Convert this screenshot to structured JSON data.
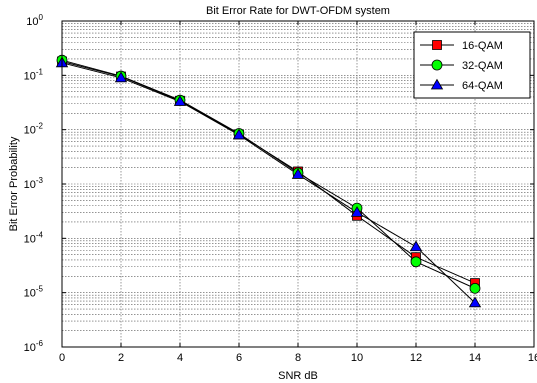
{
  "chart_data": {
    "type": "line",
    "title": "Bit Error Rate for DWT-OFDM system",
    "xlabel": "SNR dB",
    "ylabel": "Bit Error Probability",
    "xscale": "linear",
    "yscale": "log",
    "xlim": [
      0,
      16
    ],
    "ylim": [
      1e-06,
      1
    ],
    "x_ticks": [
      0,
      2,
      4,
      6,
      8,
      10,
      12,
      14,
      16
    ],
    "x_tick_labels": [
      "0",
      "2",
      "4",
      "6",
      "8",
      "10",
      "12",
      "14",
      "16"
    ],
    "y_ticks": [
      {
        "value": 1,
        "base": "10",
        "exp": "0"
      },
      {
        "value": 0.1,
        "base": "10",
        "exp": "-1"
      },
      {
        "value": 0.01,
        "base": "10",
        "exp": "-2"
      },
      {
        "value": 0.001,
        "base": "10",
        "exp": "-3"
      },
      {
        "value": 0.0001,
        "base": "10",
        "exp": "-4"
      },
      {
        "value": 1e-05,
        "base": "10",
        "exp": "-5"
      },
      {
        "value": 1e-06,
        "base": "10",
        "exp": "-6"
      }
    ],
    "grid": true,
    "legend_position": "top-right",
    "x": [
      0,
      2,
      4,
      6,
      8,
      10,
      12,
      14
    ],
    "series": [
      {
        "name": "16-QAM",
        "marker": "square",
        "color": "#ff0000",
        "values": [
          0.18,
          0.095,
          0.034,
          0.0082,
          0.0017,
          0.00026,
          4.5e-05,
          1.5e-05
        ]
      },
      {
        "name": "32-QAM",
        "marker": "circle",
        "color": "#00ff00",
        "values": [
          0.19,
          0.097,
          0.035,
          0.0085,
          0.0016,
          0.00036,
          3.7e-05,
          1.2e-05
        ]
      },
      {
        "name": "64-QAM",
        "marker": "triangle",
        "color": "#0000ff",
        "values": [
          0.17,
          0.09,
          0.033,
          0.008,
          0.0015,
          0.0003,
          7e-05,
          6.5e-06
        ]
      }
    ]
  }
}
